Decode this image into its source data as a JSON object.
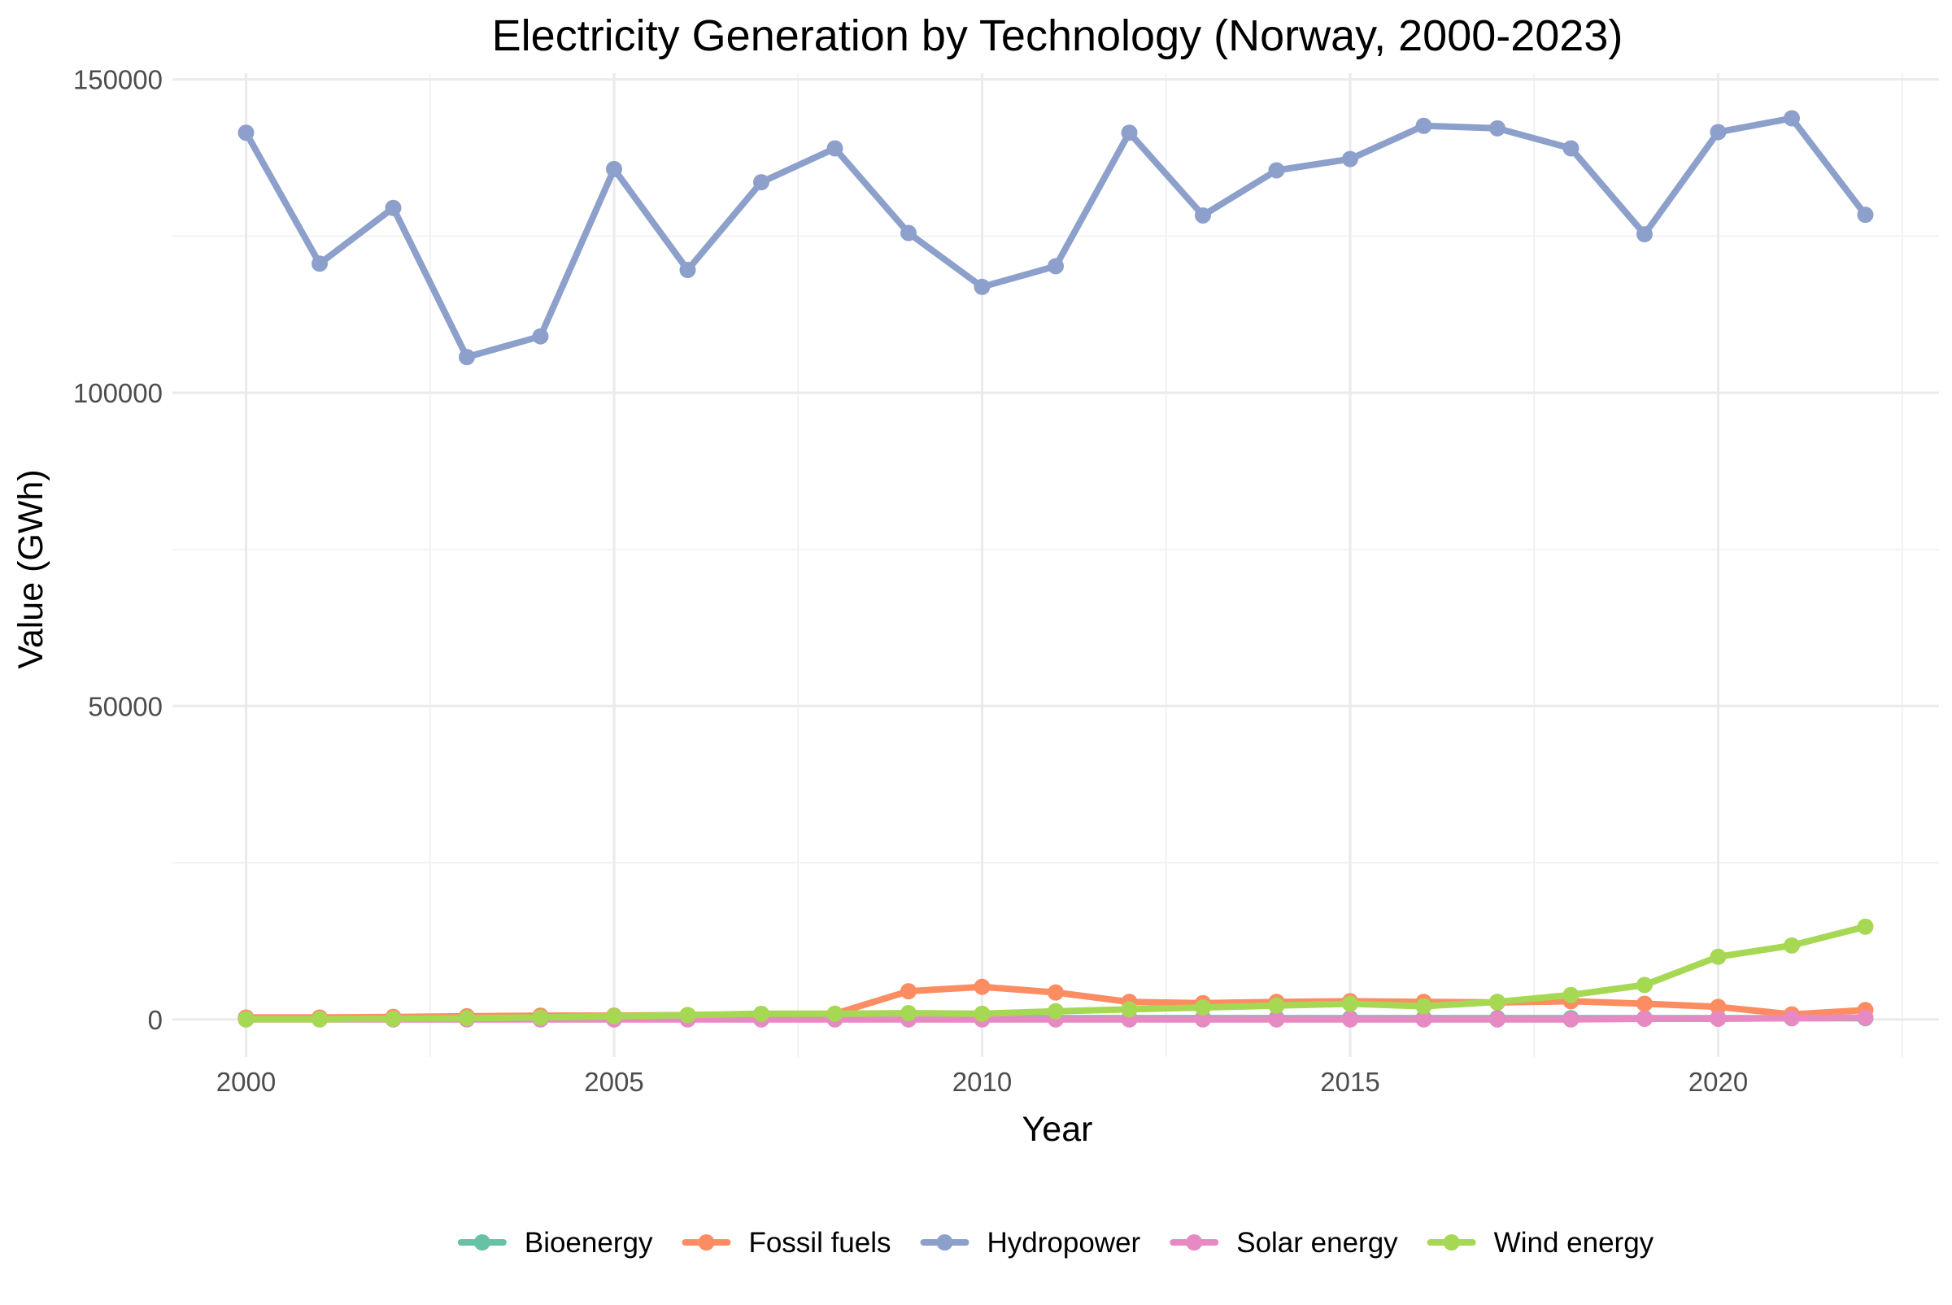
{
  "chart_data": {
    "type": "line",
    "title": "Electricity Generation by Technology (Norway, 2000-2023)",
    "xlabel": "Year",
    "ylabel": "Value (GWh)",
    "xlim": [
      1999.0,
      2023.0
    ],
    "ylim": [
      -6000,
      151000
    ],
    "x_ticks": [
      2000,
      2005,
      2010,
      2015,
      2020
    ],
    "x_tick_labels": [
      "2000",
      "2005",
      "2010",
      "2015",
      "2020"
    ],
    "y_ticks": [
      0,
      50000,
      100000,
      150000
    ],
    "y_tick_labels": [
      "0",
      "50000",
      "100000",
      "150000"
    ],
    "grid": true,
    "legend_position": "bottom",
    "x": [
      2000,
      2001,
      2002,
      2003,
      2004,
      2005,
      2006,
      2007,
      2008,
      2009,
      2010,
      2011,
      2012,
      2013,
      2014,
      2015,
      2016,
      2017,
      2018,
      2019,
      2020,
      2021,
      2022
    ],
    "series": [
      {
        "name": "Bioenergy",
        "color": "#66c2a5",
        "values": [
          200,
          200,
          200,
          200,
          200,
          200,
          200,
          200,
          200,
          200,
          200,
          200,
          200,
          200,
          200,
          200,
          200,
          200,
          200,
          200,
          200,
          200,
          200
        ]
      },
      {
        "name": "Fossil fuels",
        "color": "#fc8d62",
        "values": [
          300,
          300,
          400,
          500,
          600,
          600,
          700,
          800,
          900,
          4500,
          5200,
          4300,
          2800,
          2600,
          2800,
          2900,
          2800,
          2700,
          2900,
          2500,
          2000,
          800,
          1500
        ]
      },
      {
        "name": "Hydropower",
        "color": "#8da0cb",
        "values": [
          141500,
          120600,
          129500,
          105700,
          109000,
          135700,
          119600,
          133600,
          139000,
          125500,
          116900,
          120200,
          141500,
          128300,
          135500,
          137300,
          142600,
          142200,
          139000,
          125300,
          141600,
          143800,
          128400
        ]
      },
      {
        "name": "Solar energy",
        "color": "#e78ac3",
        "values": [
          0,
          0,
          0,
          0,
          0,
          0,
          0,
          0,
          0,
          0,
          0,
          0,
          0,
          0,
          0,
          0,
          0,
          0,
          0,
          100,
          100,
          200,
          300
        ]
      },
      {
        "name": "Wind energy",
        "color": "#a6d854",
        "values": [
          30,
          30,
          100,
          200,
          300,
          500,
          700,
          900,
          900,
          1000,
          900,
          1300,
          1600,
          1900,
          2200,
          2500,
          2100,
          2800,
          3900,
          5500,
          10000,
          11800,
          14800
        ]
      }
    ]
  }
}
